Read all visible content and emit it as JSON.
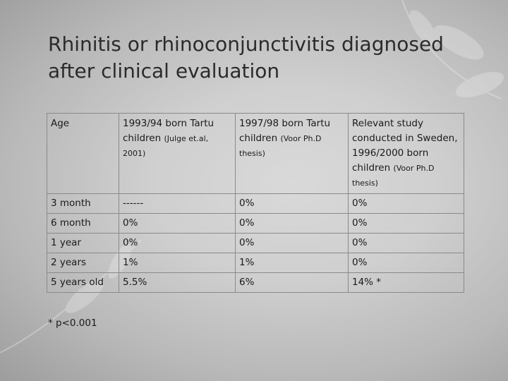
{
  "title": {
    "line1": "Rhinitis or rhinoconjunctivitis diagnosed",
    "line2": "after clinical evaluation"
  },
  "table": {
    "header": {
      "age": "Age",
      "col2_main": "1993/94 born Tartu children",
      "col2_note": "(Julge et.al, 2001)",
      "col3_main": "1997/98 born Tartu children",
      "col3_note": "(Voor Ph.D thesis)",
      "col4_main": "Relevant study conducted in Sweden, 1996/2000 born children",
      "col4_note": "(Voor Ph.D thesis)"
    },
    "rows": [
      {
        "age": "3 month",
        "tartu_9394": "------",
        "tartu_9798": "0%",
        "sweden": "0%"
      },
      {
        "age": "6 month",
        "tartu_9394": "0%",
        "tartu_9798": "0%",
        "sweden": "0%"
      },
      {
        "age": "1 year",
        "tartu_9394": "0%",
        "tartu_9798": "0%",
        "sweden": "0%"
      },
      {
        "age": "2 years",
        "tartu_9394": "1%",
        "tartu_9798": "1%",
        "sweden": "0%"
      },
      {
        "age": "5 years old",
        "tartu_9394": "5.5%",
        "tartu_9798": "6%",
        "sweden": "14% *"
      }
    ]
  },
  "footnote": "* p<0.001",
  "colors": {
    "background": "#cfcfcf",
    "text": "#1a1a1a",
    "border": "#8a8a8a"
  }
}
